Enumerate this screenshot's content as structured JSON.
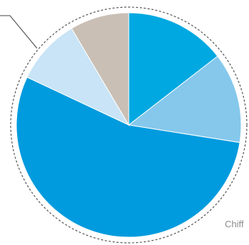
{
  "chart_data": {
    "type": "pie",
    "start_angle_deg": 0,
    "direction": "clockwise",
    "slices": [
      {
        "value": 14.5,
        "color": "#00a8e1"
      },
      {
        "value": 13.0,
        "color": "#85c8ec"
      },
      {
        "value": 54.5,
        "color": "#009bde"
      },
      {
        "value": 9.5,
        "color": "#c8e4f6"
      },
      {
        "value": 8.5,
        "color": "#c9bfb5"
      }
    ],
    "outline": {
      "style": "dashed",
      "color": "#555555"
    },
    "leader_line_color": "#444444",
    "footer_text": "Chiff"
  }
}
